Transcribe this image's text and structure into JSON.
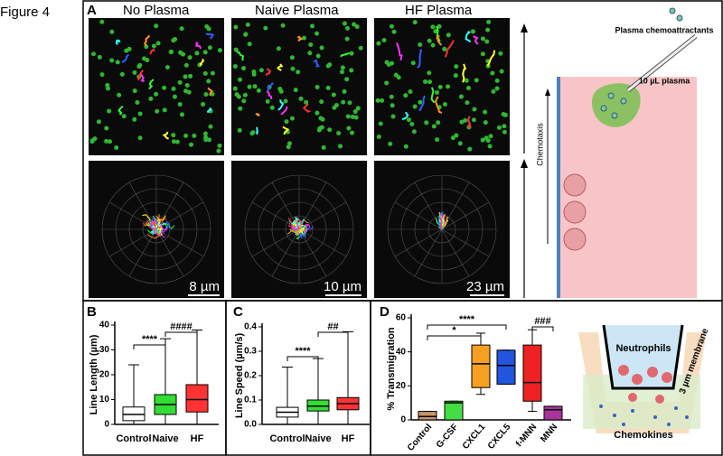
{
  "figure_label": "Figure 4",
  "panel_a": {
    "label": "A",
    "titles": [
      "No Plasma",
      "Naive Plasma",
      "HF Plasma"
    ],
    "scale_bars": [
      "8 µm",
      "10 µm",
      "23 µm"
    ],
    "schematic": {
      "axis_label": "Chemotaxis",
      "source": "Plasma chemoattractants",
      "volume": "10 µL plasma"
    }
  },
  "panel_labels": [
    "B",
    "C",
    "D"
  ],
  "panel_d_diagram": {
    "cells": "Neutrophils",
    "membrane": "3 µm membrane",
    "chemokines": "Chemokines"
  },
  "chart_data": [
    {
      "type": "box",
      "y_label": "Line Length (µm)",
      "categories": [
        "Control",
        "Naive",
        "HF"
      ],
      "colors": [
        "#ffffff",
        "#33dd33",
        "#ff3333"
      ],
      "boxes": [
        {
          "whislo": 0,
          "q1": 1.5,
          "med": 4,
          "q3": 7,
          "whishi": 24
        },
        {
          "whislo": 0,
          "q1": 4,
          "med": 8,
          "q3": 12,
          "whishi": 34.5
        },
        {
          "whislo": 0,
          "q1": 5,
          "med": 10,
          "q3": 16,
          "whishi": 38
        }
      ],
      "ylim": [
        0,
        40
      ],
      "yticks": [
        0,
        10,
        20,
        30,
        40
      ],
      "annotations": [
        "****",
        "####"
      ]
    },
    {
      "type": "box",
      "y_label": "Line Speed (µm/s)",
      "categories": [
        "Control",
        "Naive",
        "HF"
      ],
      "colors": [
        "#ffffff",
        "#33dd33",
        "#ff3333"
      ],
      "boxes": [
        {
          "whislo": 0,
          "q1": 0.03,
          "med": 0.05,
          "q3": 0.07,
          "whishi": 0.235
        },
        {
          "whislo": 0,
          "q1": 0.055,
          "med": 0.075,
          "q3": 0.1,
          "whishi": 0.27
        },
        {
          "whislo": 0,
          "q1": 0.06,
          "med": 0.085,
          "q3": 0.11,
          "whishi": 0.38
        }
      ],
      "ylim": [
        0,
        0.4
      ],
      "yticks": [
        {
          "value": 0,
          "label": "0.0"
        },
        0.1,
        0.2,
        0.3,
        0.4
      ],
      "annotations": [
        "****",
        "##"
      ]
    },
    {
      "type": "box",
      "y_label": "% Transmigration",
      "categories": [
        "Control",
        "G-CSF",
        "CXCL1",
        "CXCL5",
        "f-MNN",
        "MNN"
      ],
      "colors": [
        "#c8956a",
        "#44dd44",
        "#f5a020",
        "#2255dd",
        "#ee2222",
        "#aa3399"
      ],
      "boxes": [
        {
          "whislo": 0,
          "q1": 0,
          "med": 2,
          "q3": 5,
          "whishi": 5
        },
        {
          "whislo": 0,
          "q1": 0,
          "med": 10,
          "q3": 11,
          "whishi": 11
        },
        {
          "whislo": 15,
          "q1": 19,
          "med": 33,
          "q3": 44,
          "whishi": 51
        },
        {
          "whislo": 21,
          "q1": 21,
          "med": 32,
          "q3": 41,
          "whishi": 41
        },
        {
          "whislo": 5,
          "q1": 11,
          "med": 22,
          "q3": 44,
          "whishi": 53
        },
        {
          "whislo": 0,
          "q1": 0,
          "med": 6,
          "q3": 8,
          "whishi": 8
        }
      ],
      "ylim": [
        0,
        60
      ],
      "yticks": [
        0,
        20,
        40,
        60
      ],
      "annotations": [
        "****",
        "*",
        "###"
      ]
    }
  ]
}
